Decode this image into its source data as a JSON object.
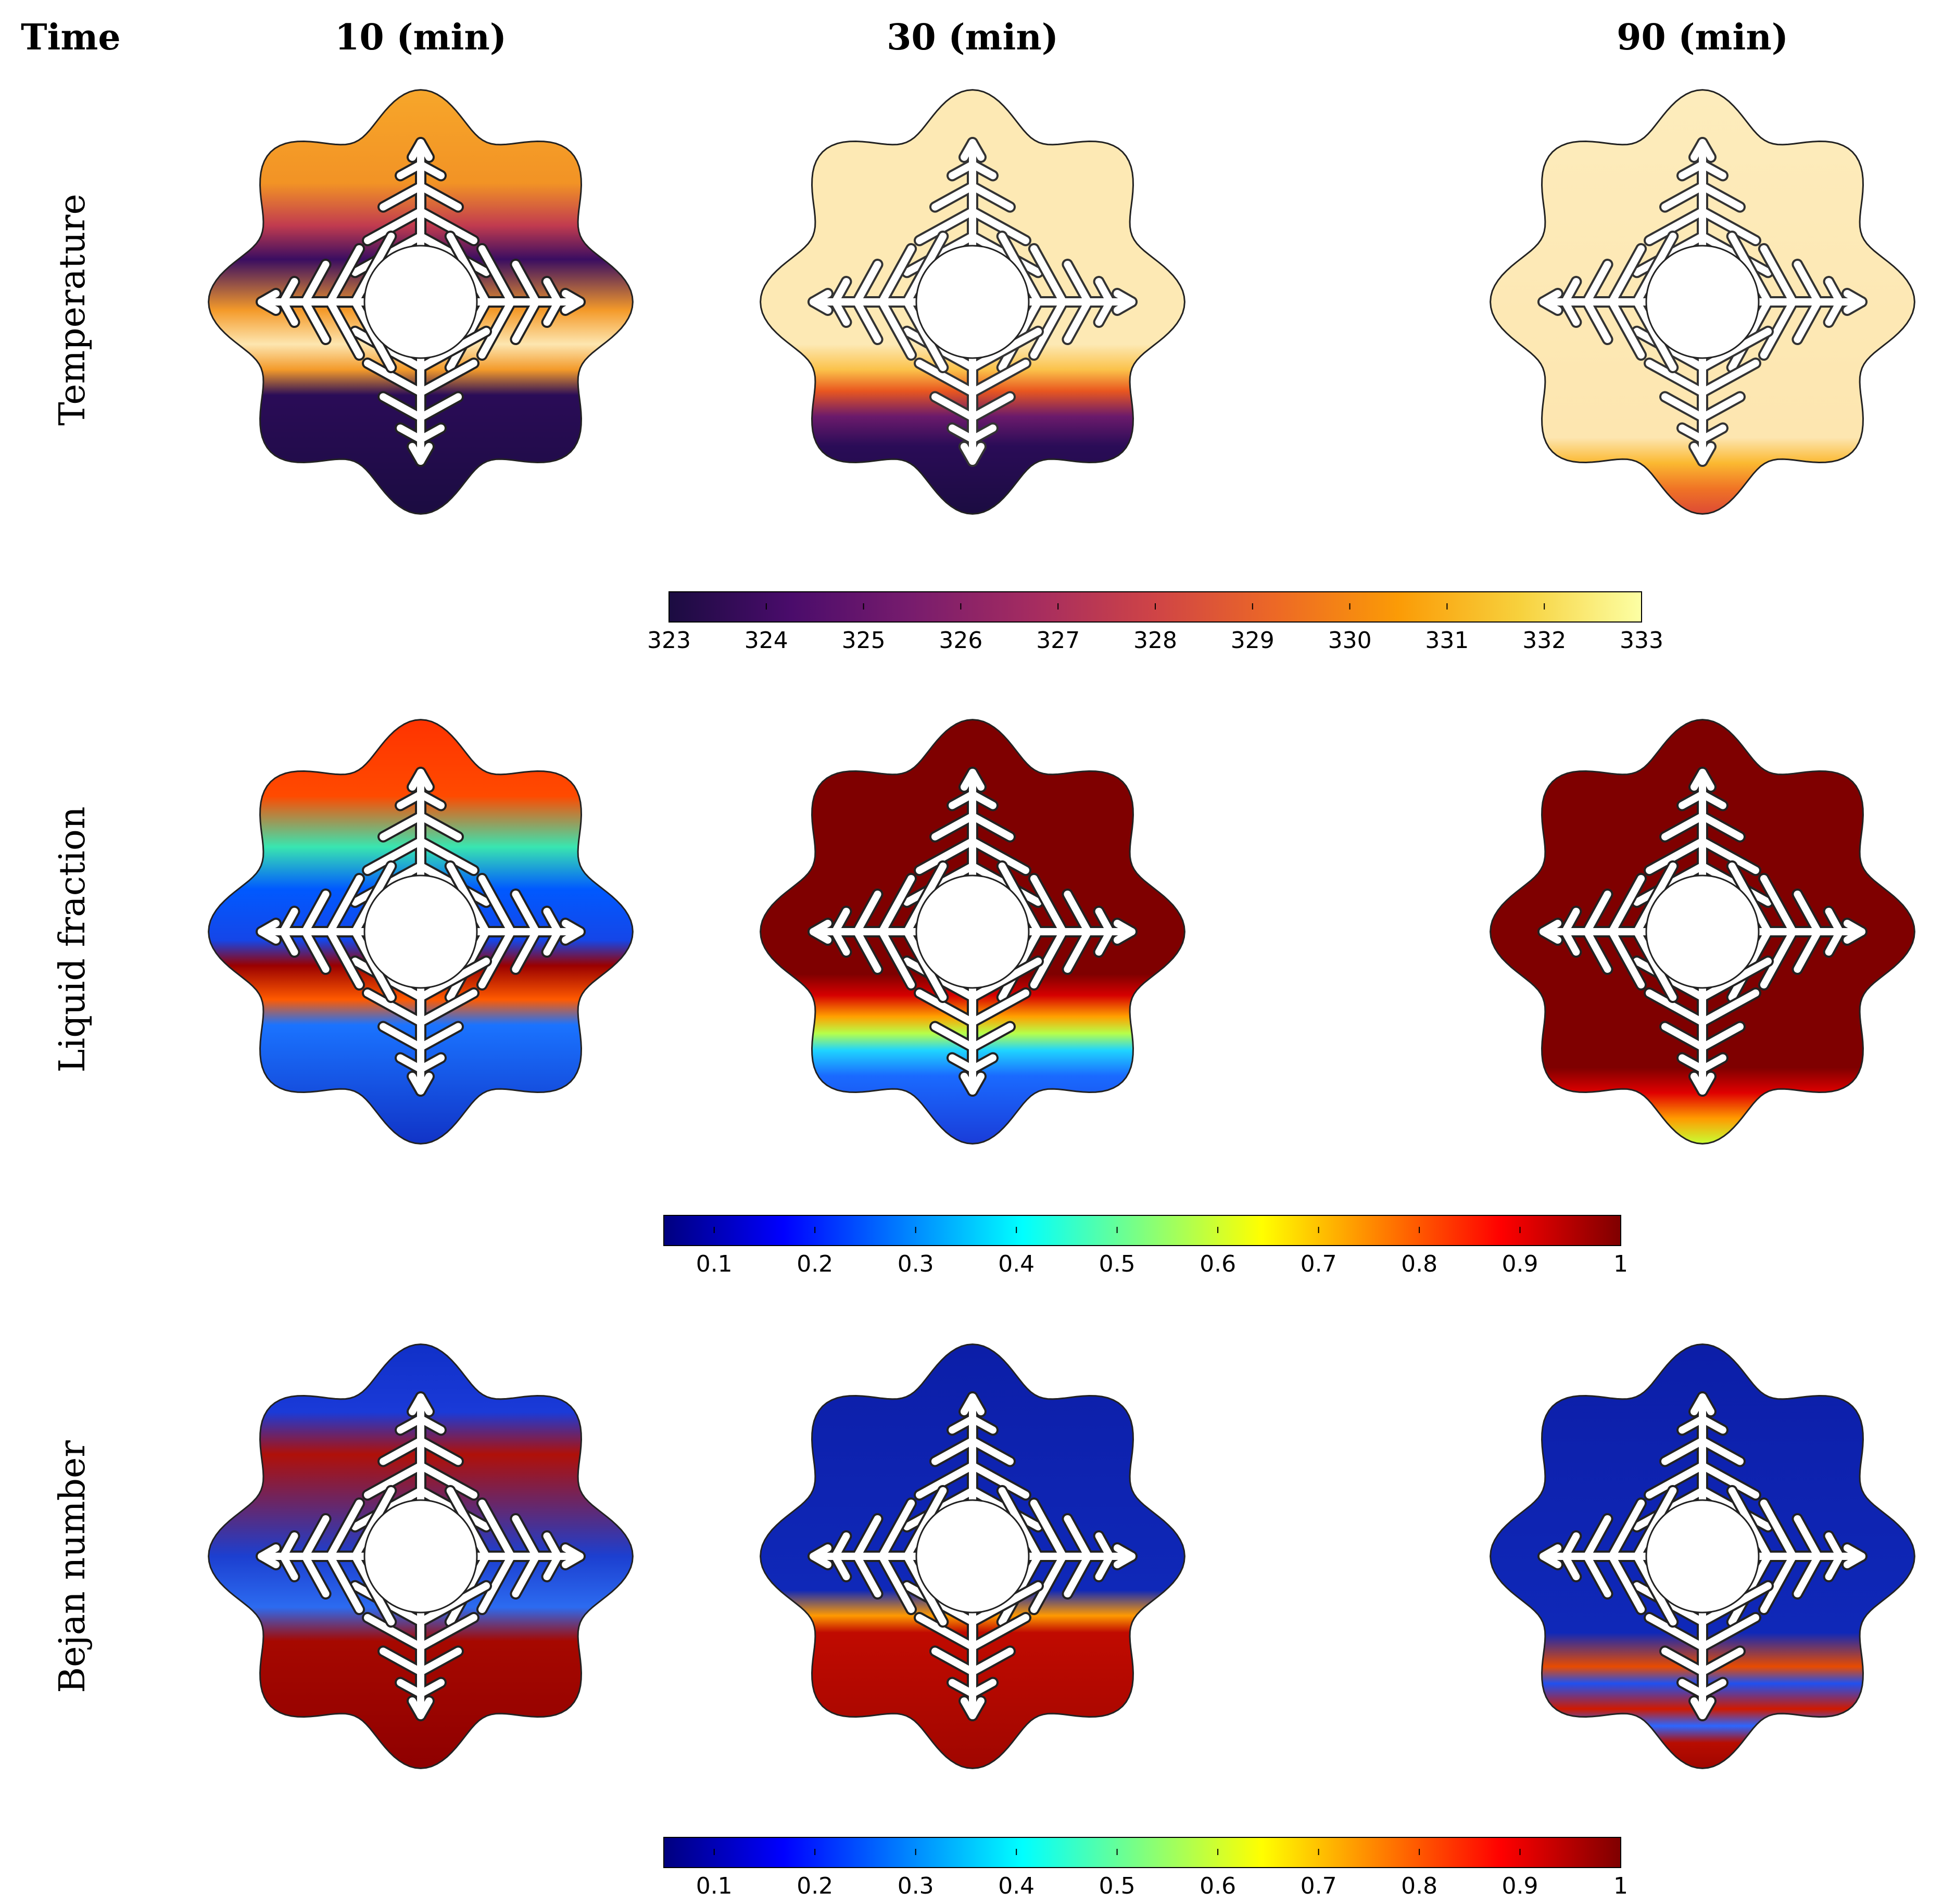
{
  "figure": {
    "header": {
      "time_label": "Time",
      "columns": [
        "10 (min)",
        "30 (min)",
        "90 (min)"
      ]
    },
    "rows": [
      {
        "label": "Temperature",
        "field": "temperature"
      },
      {
        "label": "Liquid fraction",
        "field": "liquid_fraction"
      },
      {
        "label": "Bejan number",
        "field": "bejan_number"
      }
    ],
    "colorbars": [
      {
        "name": "temperature",
        "colormap": "inferno",
        "min": 323,
        "max": 333,
        "ticks": [
          "323",
          "324",
          "325",
          "326",
          "327",
          "328",
          "329",
          "330",
          "331",
          "332",
          "333"
        ]
      },
      {
        "name": "liquid_fraction",
        "colormap": "jet",
        "min": 0.05,
        "max": 1,
        "ticks": [
          "0.1",
          "0.2",
          "0.3",
          "0.4",
          "0.5",
          "0.6",
          "0.7",
          "0.8",
          "0.9",
          "1"
        ]
      },
      {
        "name": "bejan_number",
        "colormap": "jet",
        "min": 0.05,
        "max": 1,
        "ticks": [
          "0.1",
          "0.2",
          "0.3",
          "0.4",
          "0.5",
          "0.6",
          "0.7",
          "0.8",
          "0.9",
          "1"
        ]
      }
    ]
  },
  "colors": {
    "inferno": [
      "#1b0c41",
      "#4a0c6b",
      "#781c6d",
      "#a52c60",
      "#cf4446",
      "#ed6925",
      "#fb9b06",
      "#f7d13d",
      "#fcffa4"
    ],
    "jet": [
      "#00007f",
      "#0000ff",
      "#007fff",
      "#00ffff",
      "#7fff7f",
      "#ffff00",
      "#ff7f00",
      "#ff0000",
      "#7f0000"
    ],
    "inferno_hot": "#fde9b4",
    "inferno_cold": "#1b0c41",
    "jet_liquid": "#7f0000",
    "jet_solid": "#0d2bd6",
    "bejan_low": "#0c1ea8",
    "bejan_high": "#a60800"
  }
}
